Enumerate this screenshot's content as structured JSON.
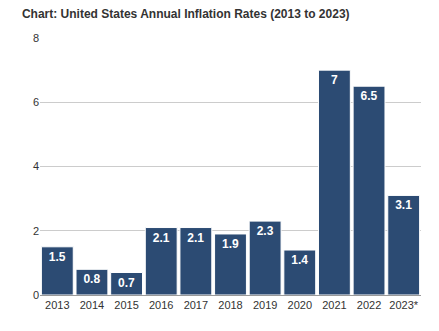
{
  "chart_data": {
    "type": "bar",
    "title": "Chart: United States Annual Inflation Rates (2013 to 2023)",
    "categories": [
      "2013",
      "2014",
      "2015",
      "2016",
      "2017",
      "2018",
      "2019",
      "2020",
      "2021",
      "2022",
      "2023*"
    ],
    "values": [
      1.5,
      0.8,
      0.7,
      2.1,
      2.1,
      1.9,
      2.3,
      1.4,
      7,
      6.5,
      3.1
    ],
    "color": "#2c4b73",
    "ylim": [
      0,
      8
    ],
    "yticks": [
      0,
      2,
      4,
      6,
      8
    ],
    "grid": true,
    "data_labels": true
  }
}
